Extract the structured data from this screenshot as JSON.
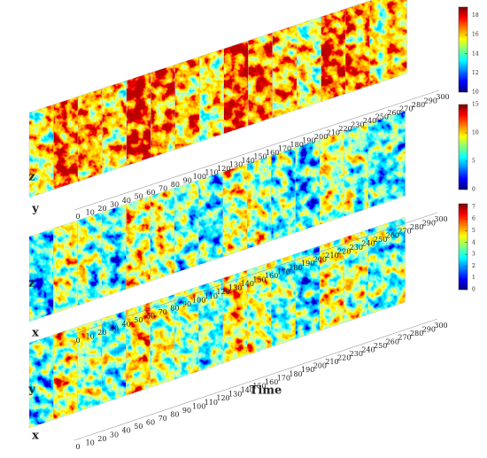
{
  "panels": [
    {
      "axis_labels": [
        "z",
        "y"
      ],
      "time_ticks": [
        0,
        10,
        20,
        30,
        40,
        50,
        60,
        70,
        80,
        90,
        100,
        110,
        120,
        130,
        140,
        150,
        160,
        170,
        180,
        190,
        200,
        210,
        220,
        230,
        240,
        250,
        260,
        270,
        280,
        290,
        300
      ]
    },
    {
      "axis_labels": [
        "z",
        "x"
      ],
      "time_ticks": [
        0,
        10,
        20,
        30,
        40,
        50,
        60,
        70,
        80,
        90,
        100,
        110,
        120,
        130,
        140,
        150,
        160,
        170,
        180,
        190,
        200,
        210,
        220,
        230,
        240,
        250,
        260,
        270,
        280,
        290,
        300
      ]
    },
    {
      "axis_labels": [
        "y",
        "x"
      ],
      "time_ticks": [
        0,
        10,
        20,
        30,
        40,
        50,
        60,
        70,
        80,
        90,
        100,
        110,
        120,
        130,
        140,
        150,
        160,
        170,
        180,
        190,
        200,
        210,
        220,
        230,
        240,
        250,
        260,
        270,
        280,
        290,
        300
      ]
    }
  ],
  "time_label": "Time",
  "colorbars": [
    {
      "ticks": [
        10,
        12,
        14,
        16,
        18
      ]
    },
    {
      "ticks": [
        0,
        5,
        10,
        15
      ]
    },
    {
      "ticks": [
        0,
        1,
        2,
        3,
        4,
        5,
        6,
        7
      ]
    }
  ]
}
